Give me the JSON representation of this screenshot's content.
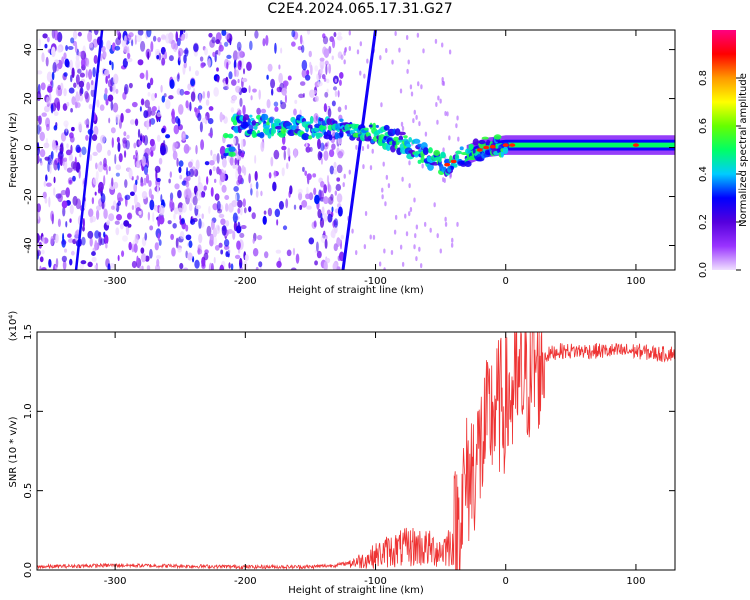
{
  "title": "C2E4.2024.065.17.31.G27",
  "chart_data": [
    {
      "type": "heatmap",
      "xlabel": "Height of straight line (km)",
      "ylabel": "Frequency (Hz)",
      "xlim": [
        -360,
        130
      ],
      "ylim": [
        -50,
        48
      ],
      "x_ticks": [
        -300,
        -200,
        -100,
        0,
        100
      ],
      "y_ticks": [
        -40,
        -20,
        0,
        20,
        40
      ],
      "colorbar": {
        "label": "Normalized spectral amplitude",
        "range": [
          0.0,
          1.0
        ],
        "ticks": [
          "0.0",
          "0.2",
          "0.4",
          "0.6",
          "0.8"
        ],
        "colormap": [
          "#f0e0ff",
          "#9933ff",
          "#5500dd",
          "#0000ff",
          "#00ccff",
          "#00ff66",
          "#66ff00",
          "#ffff00",
          "#ff9900",
          "#ff0000",
          "#ff0080"
        ]
      },
      "features": {
        "noise_region_x": [
          -360,
          -125
        ],
        "sloped_line_1": {
          "x": [
            -330,
            -310
          ],
          "y": [
            -50,
            48
          ]
        },
        "sloped_line_2": {
          "x": [
            -125,
            -100
          ],
          "y": [
            -50,
            48
          ]
        },
        "main_signal": {
          "x": [
            -210,
            -180,
            -150,
            -125,
            -100,
            -80,
            -60,
            -45,
            -30,
            -15,
            0,
            50,
            100,
            130
          ],
          "y": [
            9,
            9,
            8,
            8,
            6,
            2,
            -4,
            -7,
            -3,
            0,
            1,
            1,
            1,
            1
          ]
        }
      }
    },
    {
      "type": "line",
      "xlabel": "Height of straight line (km)",
      "ylabel": "SNR (10 * v/v)",
      "yscale_label": "(x10⁴)",
      "xlim": [
        -360,
        130
      ],
      "ylim": [
        0,
        1.5
      ],
      "x_ticks": [
        -300,
        -200,
        -100,
        0,
        100
      ],
      "y_ticks": [
        "0.0",
        "0.5",
        "1.0",
        "1.5"
      ],
      "color": "#ee3333",
      "series": [
        {
          "x": [
            -360,
            -300,
            -200,
            -150,
            -130,
            -110,
            -90,
            -70,
            -50,
            -40,
            -30,
            -20,
            -10,
            0,
            10,
            20,
            30,
            40,
            60,
            80,
            100,
            120,
            130
          ],
          "y": [
            0.02,
            0.03,
            0.02,
            0.02,
            0.03,
            0.06,
            0.12,
            0.15,
            0.12,
            0.18,
            0.55,
            0.75,
            1.0,
            1.05,
            1.15,
            1.25,
            1.35,
            1.38,
            1.38,
            1.38,
            1.38,
            1.36,
            1.37
          ]
        }
      ]
    }
  ]
}
